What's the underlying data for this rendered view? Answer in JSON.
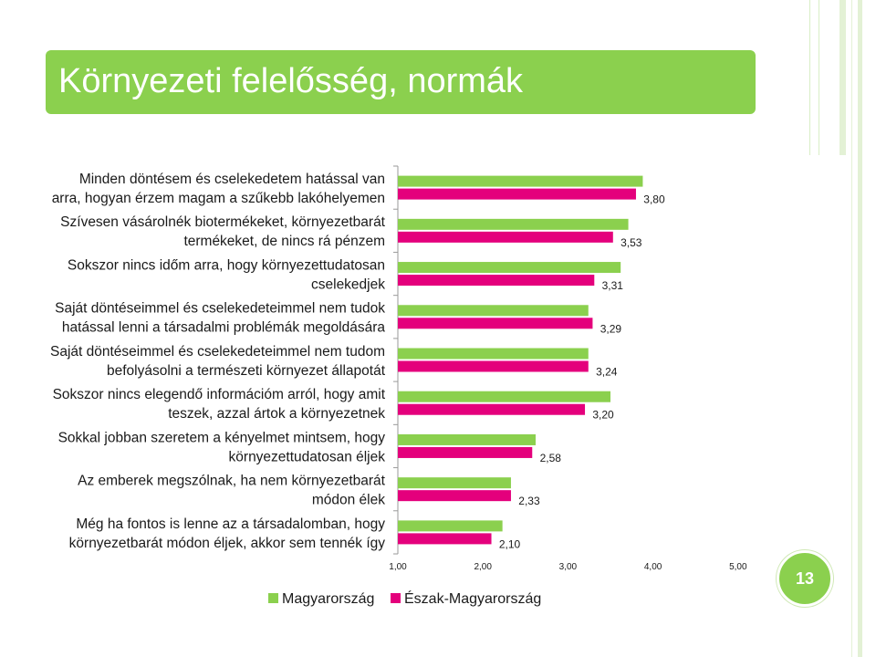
{
  "header": {
    "title": "Környezeti felelősség, normák"
  },
  "page_number": "13",
  "colors": {
    "accent": "#8bd04e",
    "hungary": "#8bd04e",
    "northern_hungary": "#e4007c"
  },
  "chart_data": {
    "type": "bar",
    "orientation": "horizontal",
    "categories": [
      "Minden döntésem és cselekedetem hatással van arra, hogyan érzem magam a szűkebb lakóhelyemen",
      "Szívesen vásárolnék biotermékeket, környezetbarát termékeket, de nincs rá pénzem",
      "Sokszor nincs időm arra, hogy környezettudatosan cselekedjek",
      "Saját döntéseimmel és cselekedeteimmel nem tudok hatással lenni a társadalmi problémák megoldására",
      "Saját döntéseimmel és cselekedeteimmel nem tudom befolyásolni a természeti környezet állapotát",
      "Sokszor nincs elegendő információm arról, hogy amit teszek, azzal ártok a környezetnek",
      "Sokkal jobban szeretem a kényelmet mintsem, hogy környezettudatosan éljek",
      "Az emberek megszólnak, ha nem környezetbarát módon élek",
      "Még ha fontos is lenne az a társadalomban, hogy környezetbarát módon éljek, akkor sem tennék így"
    ],
    "category_lines": [
      [
        "Minden döntésem és cselekedetem hatással van",
        "arra, hogyan érzem magam a szűkebb lakóhelyemen"
      ],
      [
        "Szívesen vásárolnék biotermékeket, környezetbarát",
        "termékeket, de nincs rá pénzem"
      ],
      [
        "Sokszor nincs időm arra, hogy környezettudatosan",
        "cselekedjek"
      ],
      [
        "Saját döntéseimmel és cselekedeteimmel nem tudok",
        "hatással lenni a társadalmi problémák megoldására"
      ],
      [
        "Saját döntéseimmel és cselekedeteimmel nem tudom",
        "befolyásolni a természeti környezet állapotát"
      ],
      [
        "Sokszor nincs elegendő információm arról, hogy amit",
        "teszek, azzal ártok a környezetnek"
      ],
      [
        "Sokkal jobban szeretem a kényelmet mintsem, hogy",
        "környezettudatosan éljek"
      ],
      [
        "Az emberek megszólnak, ha nem környezetbarát",
        "módon élek"
      ],
      [
        "Még ha fontos is lenne az a társadalomban, hogy",
        "környezetbarát módon éljek, akkor sem tennék így"
      ]
    ],
    "series": [
      {
        "name": "Magyarország",
        "color": "#8bd04e",
        "values": [
          3.88,
          3.71,
          3.62,
          3.24,
          3.24,
          3.5,
          2.62,
          2.33,
          2.23
        ]
      },
      {
        "name": "Észak-Magyarország",
        "color": "#e4007c",
        "values": [
          3.8,
          3.53,
          3.31,
          3.29,
          3.24,
          3.2,
          2.58,
          2.33,
          2.1
        ],
        "data_labels": [
          "3,80",
          "3,53",
          "3,31",
          "3,29",
          "3,24",
          "3,20",
          "2,58",
          "2,33",
          "2,10"
        ]
      }
    ],
    "xlim": [
      1,
      5
    ],
    "x_ticks": [
      "1,00",
      "2,00",
      "3,00",
      "4,00",
      "5,00"
    ],
    "grid": false,
    "legend_position": "bottom"
  }
}
